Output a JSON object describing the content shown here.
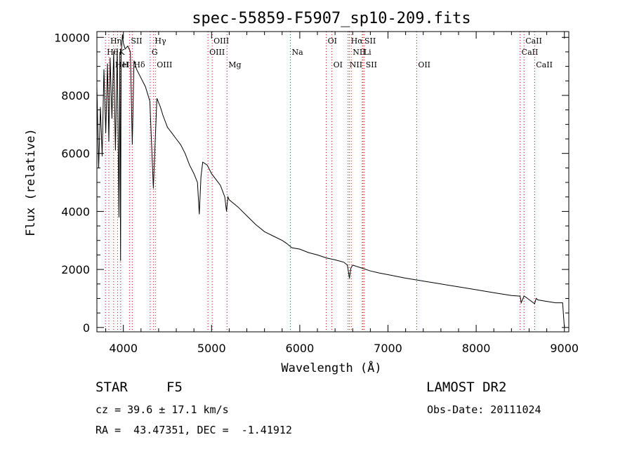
{
  "chart_data": {
    "type": "line",
    "title": "spec-55859-F5907_sp10-209.fits",
    "xlabel": "Wavelength (Å)",
    "ylabel": "Flux (relative)",
    "xlim": [
      3700,
      9050
    ],
    "ylim": [
      -150,
      10200
    ],
    "x_ticks": [
      4000,
      5000,
      6000,
      7000,
      8000,
      9000
    ],
    "y_ticks": [
      0,
      2000,
      4000,
      6000,
      8000,
      10000
    ],
    "grid": false,
    "series": [
      {
        "x": [
          3700,
          3720,
          3740,
          3760,
          3780,
          3800,
          3820,
          3835,
          3850,
          3870,
          3890,
          3910,
          3930,
          3950,
          3960,
          3968,
          3975,
          3990,
          4000,
          4020,
          4050,
          4080,
          4101,
          4120,
          4150,
          4200,
          4250,
          4300,
          4340,
          4380,
          4420,
          4450,
          4500,
          4550,
          4600,
          4650,
          4700,
          4750,
          4800,
          4840,
          4861,
          4880,
          4900,
          4950,
          5000,
          5100,
          5150,
          5170,
          5185,
          5200,
          5300,
          5400,
          5500,
          5600,
          5700,
          5800,
          5850,
          5890,
          5910,
          6000,
          6100,
          6200,
          6300,
          6400,
          6500,
          6540,
          6563,
          6580,
          6600,
          6700,
          6800,
          6900,
          7000,
          7200,
          7400,
          7600,
          7800,
          8000,
          8200,
          8400,
          8498,
          8510,
          8542,
          8560,
          8662,
          8680,
          8700,
          8800,
          8900,
          8980,
          9000
        ],
        "y": [
          8300,
          5500,
          7600,
          5900,
          8900,
          6700,
          9100,
          6400,
          9300,
          7200,
          9500,
          6100,
          9600,
          3800,
          9500,
          2300,
          9400,
          10100,
          9800,
          9600,
          9700,
          9500,
          6300,
          9200,
          8900,
          8600,
          8300,
          7800,
          4800,
          7900,
          7600,
          7300,
          6900,
          6700,
          6500,
          6300,
          6000,
          5600,
          5300,
          5000,
          3900,
          5200,
          5700,
          5600,
          5300,
          4900,
          4500,
          4000,
          4500,
          4400,
          4150,
          3850,
          3550,
          3300,
          3150,
          3000,
          2900,
          2800,
          2750,
          2700,
          2580,
          2500,
          2400,
          2330,
          2250,
          2150,
          1700,
          2050,
          2150,
          2050,
          1950,
          1880,
          1820,
          1700,
          1600,
          1500,
          1400,
          1300,
          1200,
          1100,
          1080,
          850,
          1080,
          1050,
          820,
          1000,
          950,
          900,
          850,
          850,
          0
        ]
      }
    ],
    "lines": [
      {
        "label": "Hη",
        "lambda": 3835,
        "row": 0
      },
      {
        "label": "Hθ",
        "lambda": 3797,
        "row": 1
      },
      {
        "label": "HeI",
        "lambda": 3889,
        "row": 2
      },
      {
        "label": "K",
        "lambda": 3934,
        "row": 1
      },
      {
        "label": "H",
        "lambda": 3969,
        "row": 2
      },
      {
        "label": "SII",
        "lambda": 4069,
        "row": 0
      },
      {
        "label": "Hδ",
        "lambda": 4101,
        "row": 2
      },
      {
        "label": "Hγ",
        "lambda": 4340,
        "row": 0
      },
      {
        "label": "G",
        "lambda": 4304,
        "row": 1
      },
      {
        "label": "OIII",
        "lambda": 4363,
        "row": 2
      },
      {
        "label": "OIII",
        "lambda": 5007,
        "row": 0
      },
      {
        "label": "OIII",
        "lambda": 4959,
        "row": 1
      },
      {
        "label": "Mg",
        "lambda": 5175,
        "row": 2
      },
      {
        "label": "Na",
        "lambda": 5893,
        "row": 1
      },
      {
        "label": "OI",
        "lambda": 6300,
        "row": 0
      },
      {
        "label": "OI",
        "lambda": 6364,
        "row": 2
      },
      {
        "label": "Hα",
        "lambda": 6563,
        "row": 0
      },
      {
        "label": "NII",
        "lambda": 6584,
        "row": 1
      },
      {
        "label": "NII",
        "lambda": 6548,
        "row": 2
      },
      {
        "label": "SII",
        "lambda": 6717,
        "row": 0
      },
      {
        "label": "Li",
        "lambda": 6708,
        "row": 1
      },
      {
        "label": "SII",
        "lambda": 6731,
        "row": 2
      },
      {
        "label": "OII",
        "lambda": 7325,
        "row": 2
      },
      {
        "label": "CaII",
        "lambda": 8542,
        "row": 0
      },
      {
        "label": "CaII",
        "lambda": 8498,
        "row": 1
      },
      {
        "label": "CaII",
        "lambda": 8662,
        "row": 2
      }
    ]
  },
  "info": {
    "class_label": "STAR",
    "subclass": "F5",
    "survey": "LAMOST DR2",
    "cz": "cz = 39.6 ± 17.1 km/s",
    "obs_date": "Obs-Date: 20111024",
    "coords": "RA =  43.47351, DEC =  -1.41912"
  },
  "colors": {
    "line": "#000000",
    "marker": "#d40000",
    "axis": "#000000"
  }
}
